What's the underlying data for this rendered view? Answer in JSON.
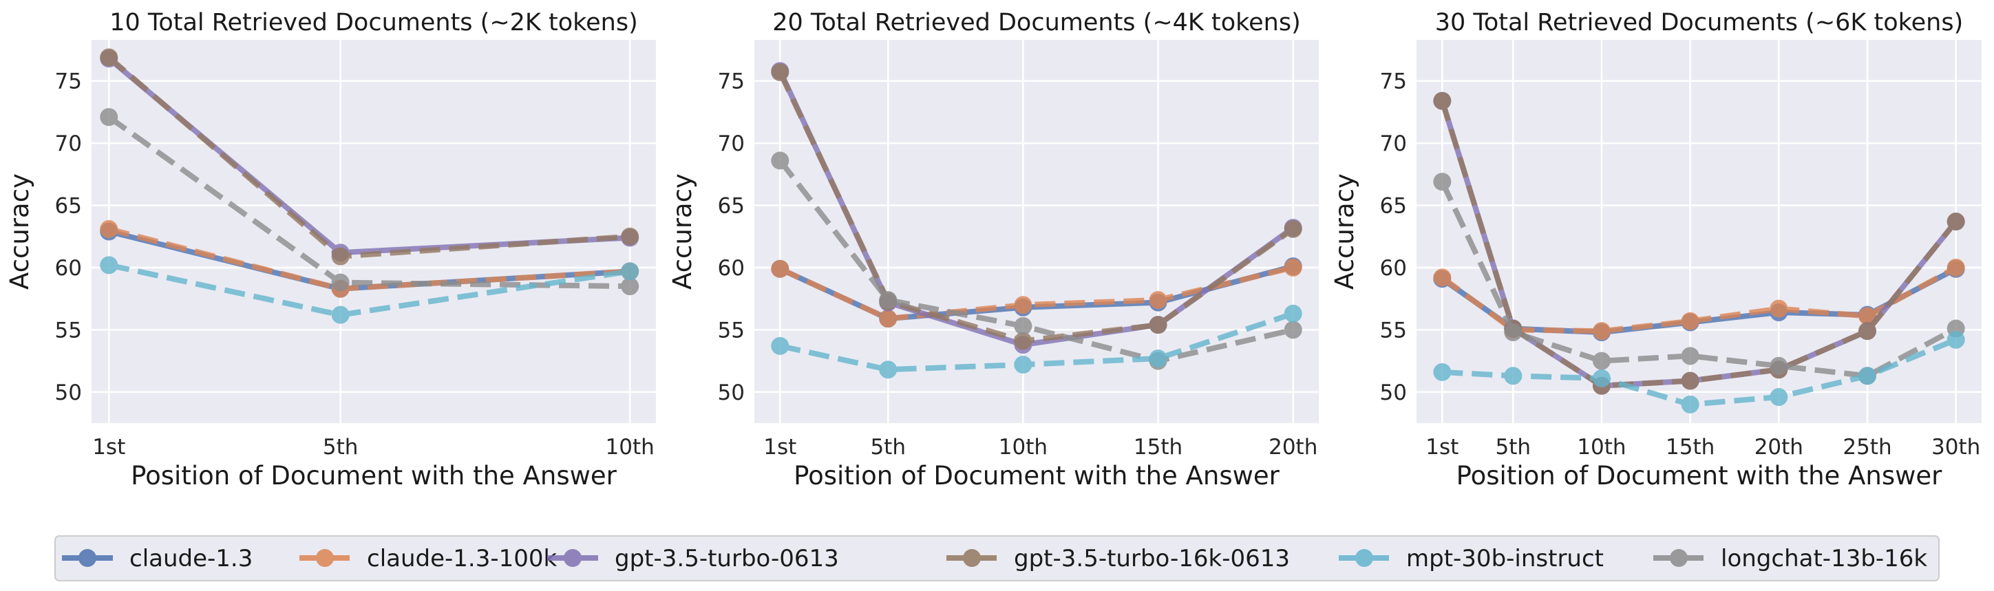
{
  "chart_data": [
    {
      "type": "line",
      "title": "10 Total Retrieved Documents (~2K tokens)",
      "xlabel": "Position of Document with the Answer",
      "ylabel": "Accuracy",
      "categories": [
        "1st",
        "5th",
        "10th"
      ],
      "x": [
        1,
        5,
        10
      ],
      "xlim": [
        0.7,
        10.45
      ],
      "ylim": [
        47.5,
        78.3
      ],
      "yticks": [
        50,
        55,
        60,
        65,
        70,
        75
      ],
      "grid": true,
      "series": [
        {
          "name": "claude-1.3",
          "values": [
            62.9,
            58.3,
            59.7
          ]
        },
        {
          "name": "claude-1.3-100k",
          "values": [
            63.1,
            58.3,
            59.7
          ]
        },
        {
          "name": "gpt-3.5-turbo-0613",
          "values": [
            76.8,
            61.2,
            62.4
          ]
        },
        {
          "name": "gpt-3.5-turbo-16k-0613",
          "values": [
            76.9,
            60.9,
            62.5
          ]
        },
        {
          "name": "mpt-30b-instruct",
          "values": [
            60.2,
            56.2,
            59.7
          ]
        },
        {
          "name": "longchat-13b-16k",
          "values": [
            72.1,
            58.8,
            58.5
          ]
        }
      ]
    },
    {
      "type": "line",
      "title": "20 Total Retrieved Documents (~4K tokens)",
      "xlabel": "Position of Document with the Answer",
      "ylabel": "Accuracy",
      "categories": [
        "1st",
        "5th",
        "10th",
        "15th",
        "20th"
      ],
      "x": [
        1,
        5,
        10,
        15,
        20
      ],
      "xlim": [
        0.05,
        20.95
      ],
      "ylim": [
        47.5,
        78.3
      ],
      "yticks": [
        50,
        55,
        60,
        65,
        70,
        75
      ],
      "grid": true,
      "series": [
        {
          "name": "claude-1.3",
          "values": [
            59.9,
            55.9,
            56.8,
            57.2,
            60.1
          ]
        },
        {
          "name": "claude-1.3-100k",
          "values": [
            59.9,
            55.9,
            57.0,
            57.4,
            60.0
          ]
        },
        {
          "name": "gpt-3.5-turbo-0613",
          "values": [
            75.8,
            57.2,
            53.8,
            55.4,
            63.2
          ]
        },
        {
          "name": "gpt-3.5-turbo-16k-0613",
          "values": [
            75.7,
            57.3,
            54.1,
            55.4,
            63.1
          ]
        },
        {
          "name": "mpt-30b-instruct",
          "values": [
            53.7,
            51.8,
            52.2,
            52.7,
            56.3
          ]
        },
        {
          "name": "longchat-13b-16k",
          "values": [
            68.6,
            57.4,
            55.3,
            52.5,
            55.0
          ]
        }
      ]
    },
    {
      "type": "line",
      "title": "30 Total Retrieved Documents (~6K tokens)",
      "xlabel": "Position of Document with the Answer",
      "ylabel": "Accuracy",
      "categories": [
        "1st",
        "5th",
        "10th",
        "15th",
        "20th",
        "25th",
        "30th"
      ],
      "x": [
        1,
        5,
        10,
        15,
        20,
        25,
        30
      ],
      "xlim": [
        -0.45,
        31.45
      ],
      "ylim": [
        47.5,
        78.3
      ],
      "yticks": [
        50,
        55,
        60,
        65,
        70,
        75
      ],
      "grid": true,
      "series": [
        {
          "name": "claude-1.3",
          "values": [
            59.1,
            55.1,
            54.8,
            55.6,
            56.4,
            56.2,
            59.9
          ]
        },
        {
          "name": "claude-1.3-100k",
          "values": [
            59.2,
            55.0,
            54.9,
            55.7,
            56.7,
            56.1,
            60.0
          ]
        },
        {
          "name": "gpt-3.5-turbo-0613",
          "values": [
            73.4,
            55.1,
            50.5,
            50.9,
            51.8,
            54.9,
            63.7
          ]
        },
        {
          "name": "gpt-3.5-turbo-16k-0613",
          "values": [
            73.4,
            55.1,
            50.5,
            50.9,
            51.8,
            54.9,
            63.7
          ]
        },
        {
          "name": "mpt-30b-instruct",
          "values": [
            51.6,
            51.3,
            51.1,
            49.0,
            49.6,
            51.3,
            54.2
          ]
        },
        {
          "name": "longchat-13b-16k",
          "values": [
            66.9,
            54.8,
            52.5,
            52.9,
            52.1,
            51.3,
            55.1
          ]
        }
      ]
    }
  ],
  "legend": {
    "placement": "bottom-center",
    "entries": [
      {
        "name": "claude-1.3",
        "color": "#4c72b0",
        "dash": false
      },
      {
        "name": "claude-1.3-100k",
        "color": "#dd8452",
        "dash": true
      },
      {
        "name": "gpt-3.5-turbo-0613",
        "color": "#8172b3",
        "dash": false
      },
      {
        "name": "gpt-3.5-turbo-16k-0613",
        "color": "#937860",
        "dash": true
      },
      {
        "name": "mpt-30b-instruct",
        "color": "#64b5cd",
        "dash": true
      },
      {
        "name": "longchat-13b-16k",
        "color": "#8c8c8c",
        "dash": true
      }
    ]
  },
  "colors": {
    "plot_background": "#eaeaf2",
    "grid": "#ffffff"
  }
}
